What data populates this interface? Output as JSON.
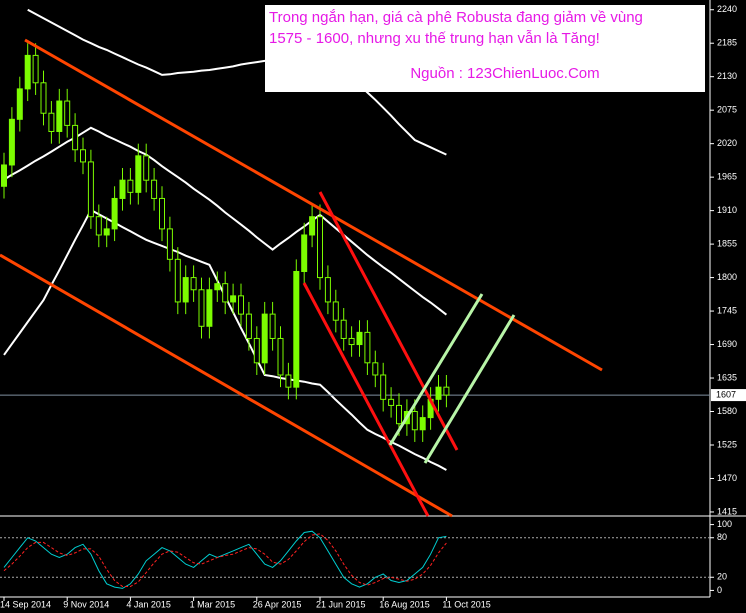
{
  "chart_data": {
    "type": "candlestick",
    "annotation": [
      "Trong ngắn hạn, giá cà phê Robusta đang giảm về vùng",
      "1575 - 1600, nhưng xu thế trung hạn vẫn là Tăng!"
    ],
    "source": "Nguồn : 123ChienLuoc.Com",
    "categories": [
      "14 Sep 2014",
      null,
      null,
      null,
      null,
      null,
      null,
      null,
      "9 Nov 2014",
      null,
      null,
      null,
      null,
      null,
      null,
      null,
      "4 Jan 2015",
      null,
      null,
      null,
      null,
      null,
      null,
      null,
      "1 Mar 2015",
      null,
      null,
      null,
      null,
      null,
      null,
      null,
      "26 Apr 2015",
      null,
      null,
      null,
      null,
      null,
      null,
      null,
      "21 Jun 2015",
      null,
      null,
      null,
      null,
      null,
      null,
      null,
      "16 Aug 2015",
      null,
      null,
      null,
      null,
      null,
      null,
      null,
      "11 Oct 2015"
    ],
    "open": [
      1950,
      1985,
      2060,
      2110,
      2165,
      2120,
      2070,
      2040,
      2090,
      2050,
      2010,
      1990,
      1900,
      1870,
      1880,
      1930,
      1960,
      1940,
      2000,
      1960,
      1930,
      1880,
      1830,
      1760,
      1800,
      1780,
      1720,
      1780,
      1790,
      1760,
      1770,
      1740,
      1700,
      1660,
      1740,
      1700,
      1640,
      1620,
      1810,
      1870,
      1900,
      1800,
      1760,
      1730,
      1700,
      1690,
      1710,
      1660,
      1640,
      1600,
      1590,
      1560,
      1580,
      1550,
      1570,
      1600,
      1620
    ],
    "high": [
      2005,
      2080,
      2130,
      2185,
      2185,
      2140,
      2090,
      2110,
      2110,
      2070,
      2030,
      2010,
      1920,
      1900,
      1950,
      1980,
      1980,
      2020,
      2020,
      1980,
      1950,
      1900,
      1850,
      1820,
      1820,
      1800,
      1800,
      1810,
      1810,
      1790,
      1790,
      1760,
      1720,
      1760,
      1760,
      1720,
      1660,
      1830,
      1890,
      1920,
      1920,
      1820,
      1780,
      1750,
      1720,
      1730,
      1730,
      1680,
      1660,
      1620,
      1610,
      1600,
      1600,
      1590,
      1620,
      1640,
      1640
    ],
    "low": [
      1930,
      1965,
      2040,
      2090,
      2100,
      2050,
      2020,
      2020,
      2030,
      1990,
      1970,
      1880,
      1850,
      1850,
      1860,
      1910,
      1920,
      1920,
      1940,
      1910,
      1860,
      1810,
      1740,
      1740,
      1760,
      1700,
      1700,
      1760,
      1740,
      1740,
      1720,
      1680,
      1640,
      1640,
      1680,
      1620,
      1600,
      1600,
      1790,
      1850,
      1780,
      1740,
      1710,
      1680,
      1670,
      1670,
      1640,
      1620,
      1580,
      1570,
      1540,
      1540,
      1530,
      1530,
      1550,
      1580,
      1587
    ],
    "close": [
      1985,
      2060,
      2110,
      2165,
      2120,
      2070,
      2040,
      2090,
      2050,
      2010,
      1990,
      1900,
      1870,
      1880,
      1930,
      1960,
      1940,
      2000,
      1960,
      1930,
      1880,
      1830,
      1760,
      1800,
      1780,
      1720,
      1780,
      1790,
      1760,
      1770,
      1740,
      1700,
      1660,
      1740,
      1700,
      1640,
      1620,
      1810,
      1870,
      1900,
      1800,
      1760,
      1730,
      1700,
      1690,
      1710,
      1660,
      1640,
      1600,
      1590,
      1560,
      1580,
      1550,
      1570,
      1600,
      1620,
      1607
    ],
    "color": "#7cfc00",
    "bands": [
      {
        "color": "#ffffff",
        "values": [
          null,
          null,
          null,
          2240,
          2233,
          2226,
          2219,
          2212,
          2205,
          2198,
          2191,
          2185,
          2179,
          2174,
          2168,
          2162,
          2156,
          2150,
          2145,
          2139,
          2133,
          2134,
          2136,
          2137,
          2138,
          2140,
          2141,
          2143,
          2145,
          2147,
          2150,
          2152,
          2154,
          2156,
          2158,
          2159,
          2160,
          2161,
          2163,
          2164,
          2165,
          2166,
          2154,
          2141,
          2129,
          2117,
          2104,
          2092,
          2079,
          2066,
          2052,
          2039,
          2026,
          2020,
          2014,
          2008,
          2002
        ]
      },
      {
        "color": "#ffffff",
        "values": [
          1961,
          1969,
          1976,
          1984,
          1992,
          1999,
          2007,
          2015,
          2023,
          2030,
          2038,
          2046,
          2040,
          2033,
          2027,
          2021,
          2015,
          2008,
          2002,
          1993,
          1983,
          1974,
          1965,
          1956,
          1946,
          1937,
          1928,
          1918,
          1907,
          1897,
          1887,
          1877,
          1866,
          1856,
          1846,
          1856,
          1865,
          1875,
          1884,
          1894,
          1903,
          1892,
          1881,
          1870,
          1859,
          1848,
          1837,
          1827,
          1817,
          1808,
          1798,
          1788,
          1778,
          1768,
          1759,
          1749,
          1739
        ]
      },
      {
        "color": "#ffffff",
        "values": [
          1673,
          1691,
          1709,
          1727,
          1745,
          1763,
          1788,
          1812,
          1837,
          1862,
          1886,
          1911,
          1904,
          1897,
          1890,
          1883,
          1876,
          1869,
          1862,
          1857,
          1852,
          1847,
          1842,
          1836,
          1831,
          1826,
          1821,
          1795,
          1769,
          1743,
          1717,
          1692,
          1666,
          1640,
          1638,
          1635,
          1633,
          1631,
          1629,
          1626,
          1624,
          1612,
          1599,
          1587,
          1575,
          1562,
          1550,
          1543,
          1537,
          1530,
          1524,
          1517,
          1510,
          1504,
          1497,
          1491,
          1484
        ]
      }
    ],
    "ylim": [
      1410,
      2256
    ],
    "yticks": [
      2240,
      2185,
      2130,
      2075,
      2020,
      1965,
      1910,
      1855,
      1800,
      1745,
      1690,
      1635,
      1580,
      1525,
      1470,
      1415
    ],
    "oscillator": {
      "ylim": [
        -10,
        110
      ],
      "yticks": [
        100,
        80,
        20,
        0
      ],
      "levels": [
        80,
        20
      ],
      "series": [
        {
          "color": "#00ced1",
          "dash": false,
          "values": [
            35,
            50,
            65,
            80,
            75,
            65,
            55,
            50,
            55,
            65,
            70,
            55,
            30,
            10,
            5,
            3,
            10,
            25,
            45,
            55,
            65,
            60,
            50,
            40,
            35,
            45,
            55,
            50,
            55,
            60,
            65,
            70,
            55,
            40,
            35,
            45,
            60,
            75,
            88,
            90,
            80,
            60,
            40,
            20,
            10,
            5,
            10,
            20,
            25,
            15,
            12,
            15,
            25,
            35,
            55,
            80,
            82
          ]
        },
        {
          "color": "#ff2020",
          "dash": true,
          "values": [
            30,
            40,
            52,
            65,
            73,
            73,
            65,
            57,
            53,
            57,
            63,
            63,
            52,
            32,
            15,
            6,
            6,
            13,
            27,
            42,
            55,
            60,
            58,
            50,
            42,
            40,
            45,
            50,
            53,
            55,
            60,
            65,
            63,
            55,
            43,
            40,
            47,
            60,
            74,
            84,
            86,
            76,
            60,
            40,
            23,
            12,
            8,
            12,
            18,
            20,
            17,
            14,
            17,
            25,
            38,
            57,
            72
          ]
        }
      ]
    }
  }
}
